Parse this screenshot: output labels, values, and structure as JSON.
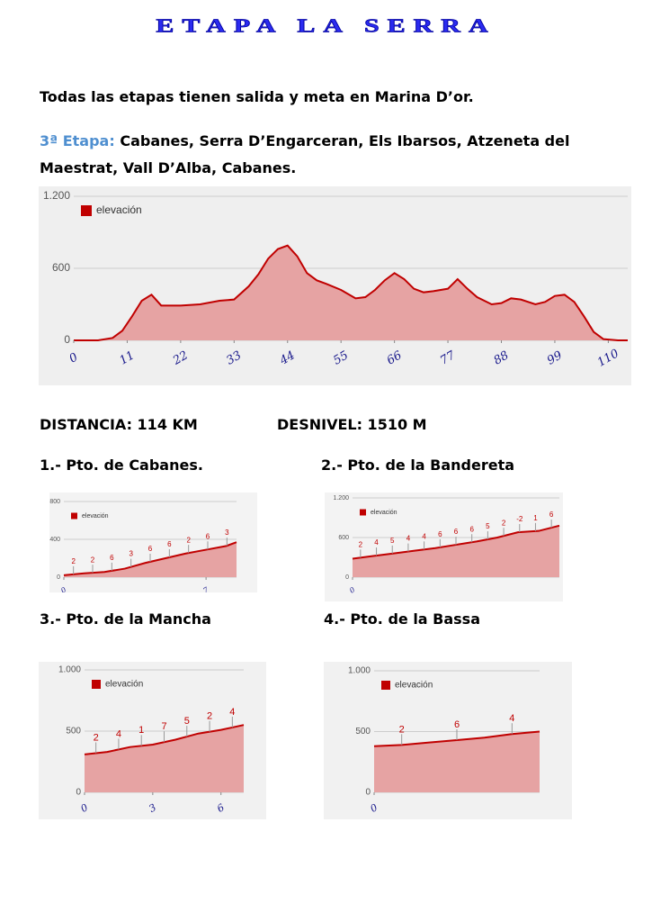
{
  "header": {
    "title": "ETAPA LA SERRA"
  },
  "intro": "Todas las etapas tienen salida y meta en Marina D’or.",
  "stage": {
    "label": "3ª  Etapa:",
    "text": "Cabanes, Serra D’Engarceran, Els Ibarsos, Atzeneta del Maestrat, Vall D’Alba, Cabanes."
  },
  "stats": {
    "distance": "DISTANCIA: 114 KM",
    "climb": "DESNIVEL: 1510 M"
  },
  "chart_data": [
    {
      "type": "area",
      "x": [
        0,
        5,
        8,
        10,
        12,
        14,
        16,
        18,
        22,
        26,
        30,
        33,
        36,
        38,
        40,
        42,
        44,
        46,
        48,
        50,
        52,
        55,
        58,
        60,
        62,
        64,
        66,
        68,
        70,
        72,
        74,
        77,
        79,
        81,
        83,
        86,
        88,
        90,
        92,
        95,
        97,
        99,
        101,
        103,
        105,
        107,
        109,
        112,
        114
      ],
      "series": [
        {
          "name": "elevación",
          "color": "#c00000",
          "values": [
            0,
            0,
            20,
            80,
            200,
            330,
            380,
            290,
            290,
            300,
            330,
            340,
            450,
            550,
            680,
            760,
            790,
            700,
            560,
            500,
            470,
            420,
            350,
            360,
            420,
            500,
            560,
            510,
            430,
            400,
            410,
            430,
            510,
            430,
            360,
            300,
            310,
            350,
            340,
            300,
            320,
            370,
            380,
            320,
            200,
            70,
            10,
            0,
            0
          ]
        }
      ],
      "xlim": [
        0,
        114
      ],
      "xticks": [
        0,
        11,
        22,
        33,
        44,
        55,
        66,
        77,
        88,
        99,
        110
      ],
      "ylim": [
        0,
        1200
      ],
      "yticks": [
        0,
        600,
        {
          "value": 1200,
          "label": "1.200"
        }
      ]
    },
    {
      "type": "area",
      "title": "1.- Pto. de Cabanes.",
      "x": [
        0,
        1,
        2,
        3,
        4,
        5,
        6,
        7,
        8,
        8.5
      ],
      "series": [
        {
          "name": "elevación",
          "color": "#c00000",
          "values": [
            20,
            40,
            55,
            90,
            150,
            200,
            250,
            290,
            330,
            370
          ]
        }
      ],
      "xlim": [
        0,
        8.5
      ],
      "xticks": [
        0,
        7
      ],
      "ylim": [
        0,
        800
      ],
      "yticks": [
        0,
        400,
        800
      ],
      "annotations": [
        "2",
        "2",
        "6",
        "3",
        "6",
        "6",
        "2",
        "6",
        "3"
      ]
    },
    {
      "type": "area",
      "title": "2.- Pto. de la Bandereta",
      "x": [
        0,
        1,
        2,
        3,
        4,
        5,
        6,
        7,
        8,
        9,
        10
      ],
      "series": [
        {
          "name": "elevación",
          "color": "#c00000",
          "values": [
            280,
            320,
            360,
            400,
            440,
            490,
            540,
            600,
            680,
            700,
            780
          ]
        }
      ],
      "xlim": [
        0,
        10
      ],
      "xticks": [
        0
      ],
      "ylim": [
        0,
        1200
      ],
      "yticks": [
        0,
        600,
        {
          "value": 1200,
          "label": "1.200"
        }
      ],
      "annotations": [
        "2",
        "4",
        "5",
        "4",
        "4",
        "6",
        "6",
        "6",
        "5",
        "2",
        "-2",
        "1",
        "6"
      ]
    },
    {
      "type": "area",
      "title": "3.- Pto. de la Mancha",
      "x": [
        0,
        1,
        2,
        3,
        4,
        5,
        6,
        7
      ],
      "series": [
        {
          "name": "elevación",
          "color": "#c00000",
          "values": [
            310,
            330,
            370,
            390,
            430,
            480,
            510,
            550
          ]
        }
      ],
      "xlim": [
        0,
        7
      ],
      "xticks": [
        0,
        3,
        6
      ],
      "ylim": [
        0,
        1000
      ],
      "yticks": [
        0,
        500,
        {
          "value": 1000,
          "label": "1.000"
        }
      ],
      "annotations": [
        "2",
        "4",
        "1",
        "7",
        "5",
        "2",
        "4"
      ]
    },
    {
      "type": "area",
      "title": "4.- Pto. de la Bassa",
      "x": [
        0,
        1,
        2,
        3,
        4,
        5,
        6
      ],
      "series": [
        {
          "name": "elevación",
          "color": "#c00000",
          "values": [
            380,
            390,
            410,
            430,
            450,
            480,
            500
          ]
        }
      ],
      "xlim": [
        0,
        6
      ],
      "xticks": [
        0
      ],
      "ylim": [
        0,
        1000
      ],
      "yticks": [
        0,
        500,
        {
          "value": 1000,
          "label": "1.000"
        }
      ],
      "annotations": [
        "2",
        "6",
        "4"
      ]
    }
  ]
}
